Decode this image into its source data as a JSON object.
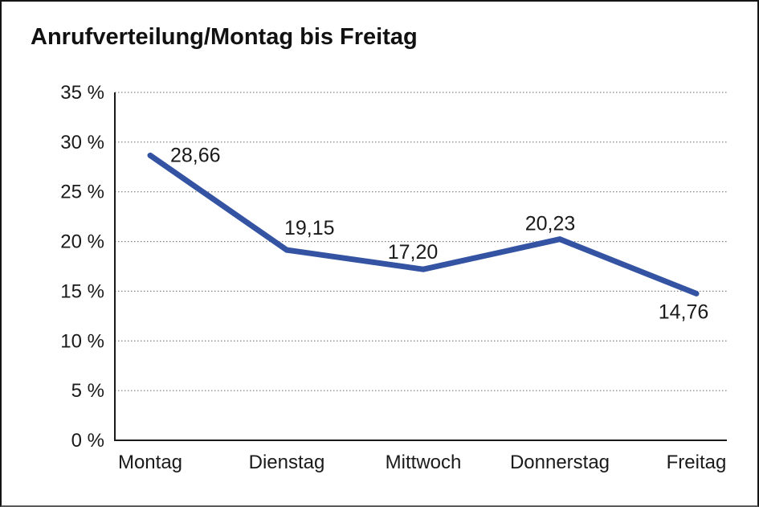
{
  "title": "Anrufverteilung/Montag bis Freitag",
  "colors": {
    "line": "#3454a3",
    "grid": "#666666",
    "axis": "#1a1a1a",
    "text": "#1a1a1a",
    "background": "#ffffff",
    "frame": "#141414"
  },
  "chart_data": {
    "type": "line",
    "title": "Anrufverteilung/Montag bis Freitag",
    "categories": [
      "Montag",
      "Dienstag",
      "Mittwoch",
      "Donnerstag",
      "Freitag"
    ],
    "values": [
      28.66,
      19.15,
      17.2,
      20.23,
      14.76
    ],
    "value_labels": [
      "28,66",
      "19,15",
      "17,20",
      "20,23",
      "14,76"
    ],
    "xlabel": "",
    "ylabel": "",
    "ylim": [
      0,
      35
    ],
    "y_tick_step": 5,
    "y_tick_labels": [
      "0 %",
      "5 %",
      "10 %",
      "15 %",
      "20 %",
      "25 %",
      "30 %",
      "35 %"
    ],
    "grid": "horizontal-dotted",
    "legend": "none"
  }
}
